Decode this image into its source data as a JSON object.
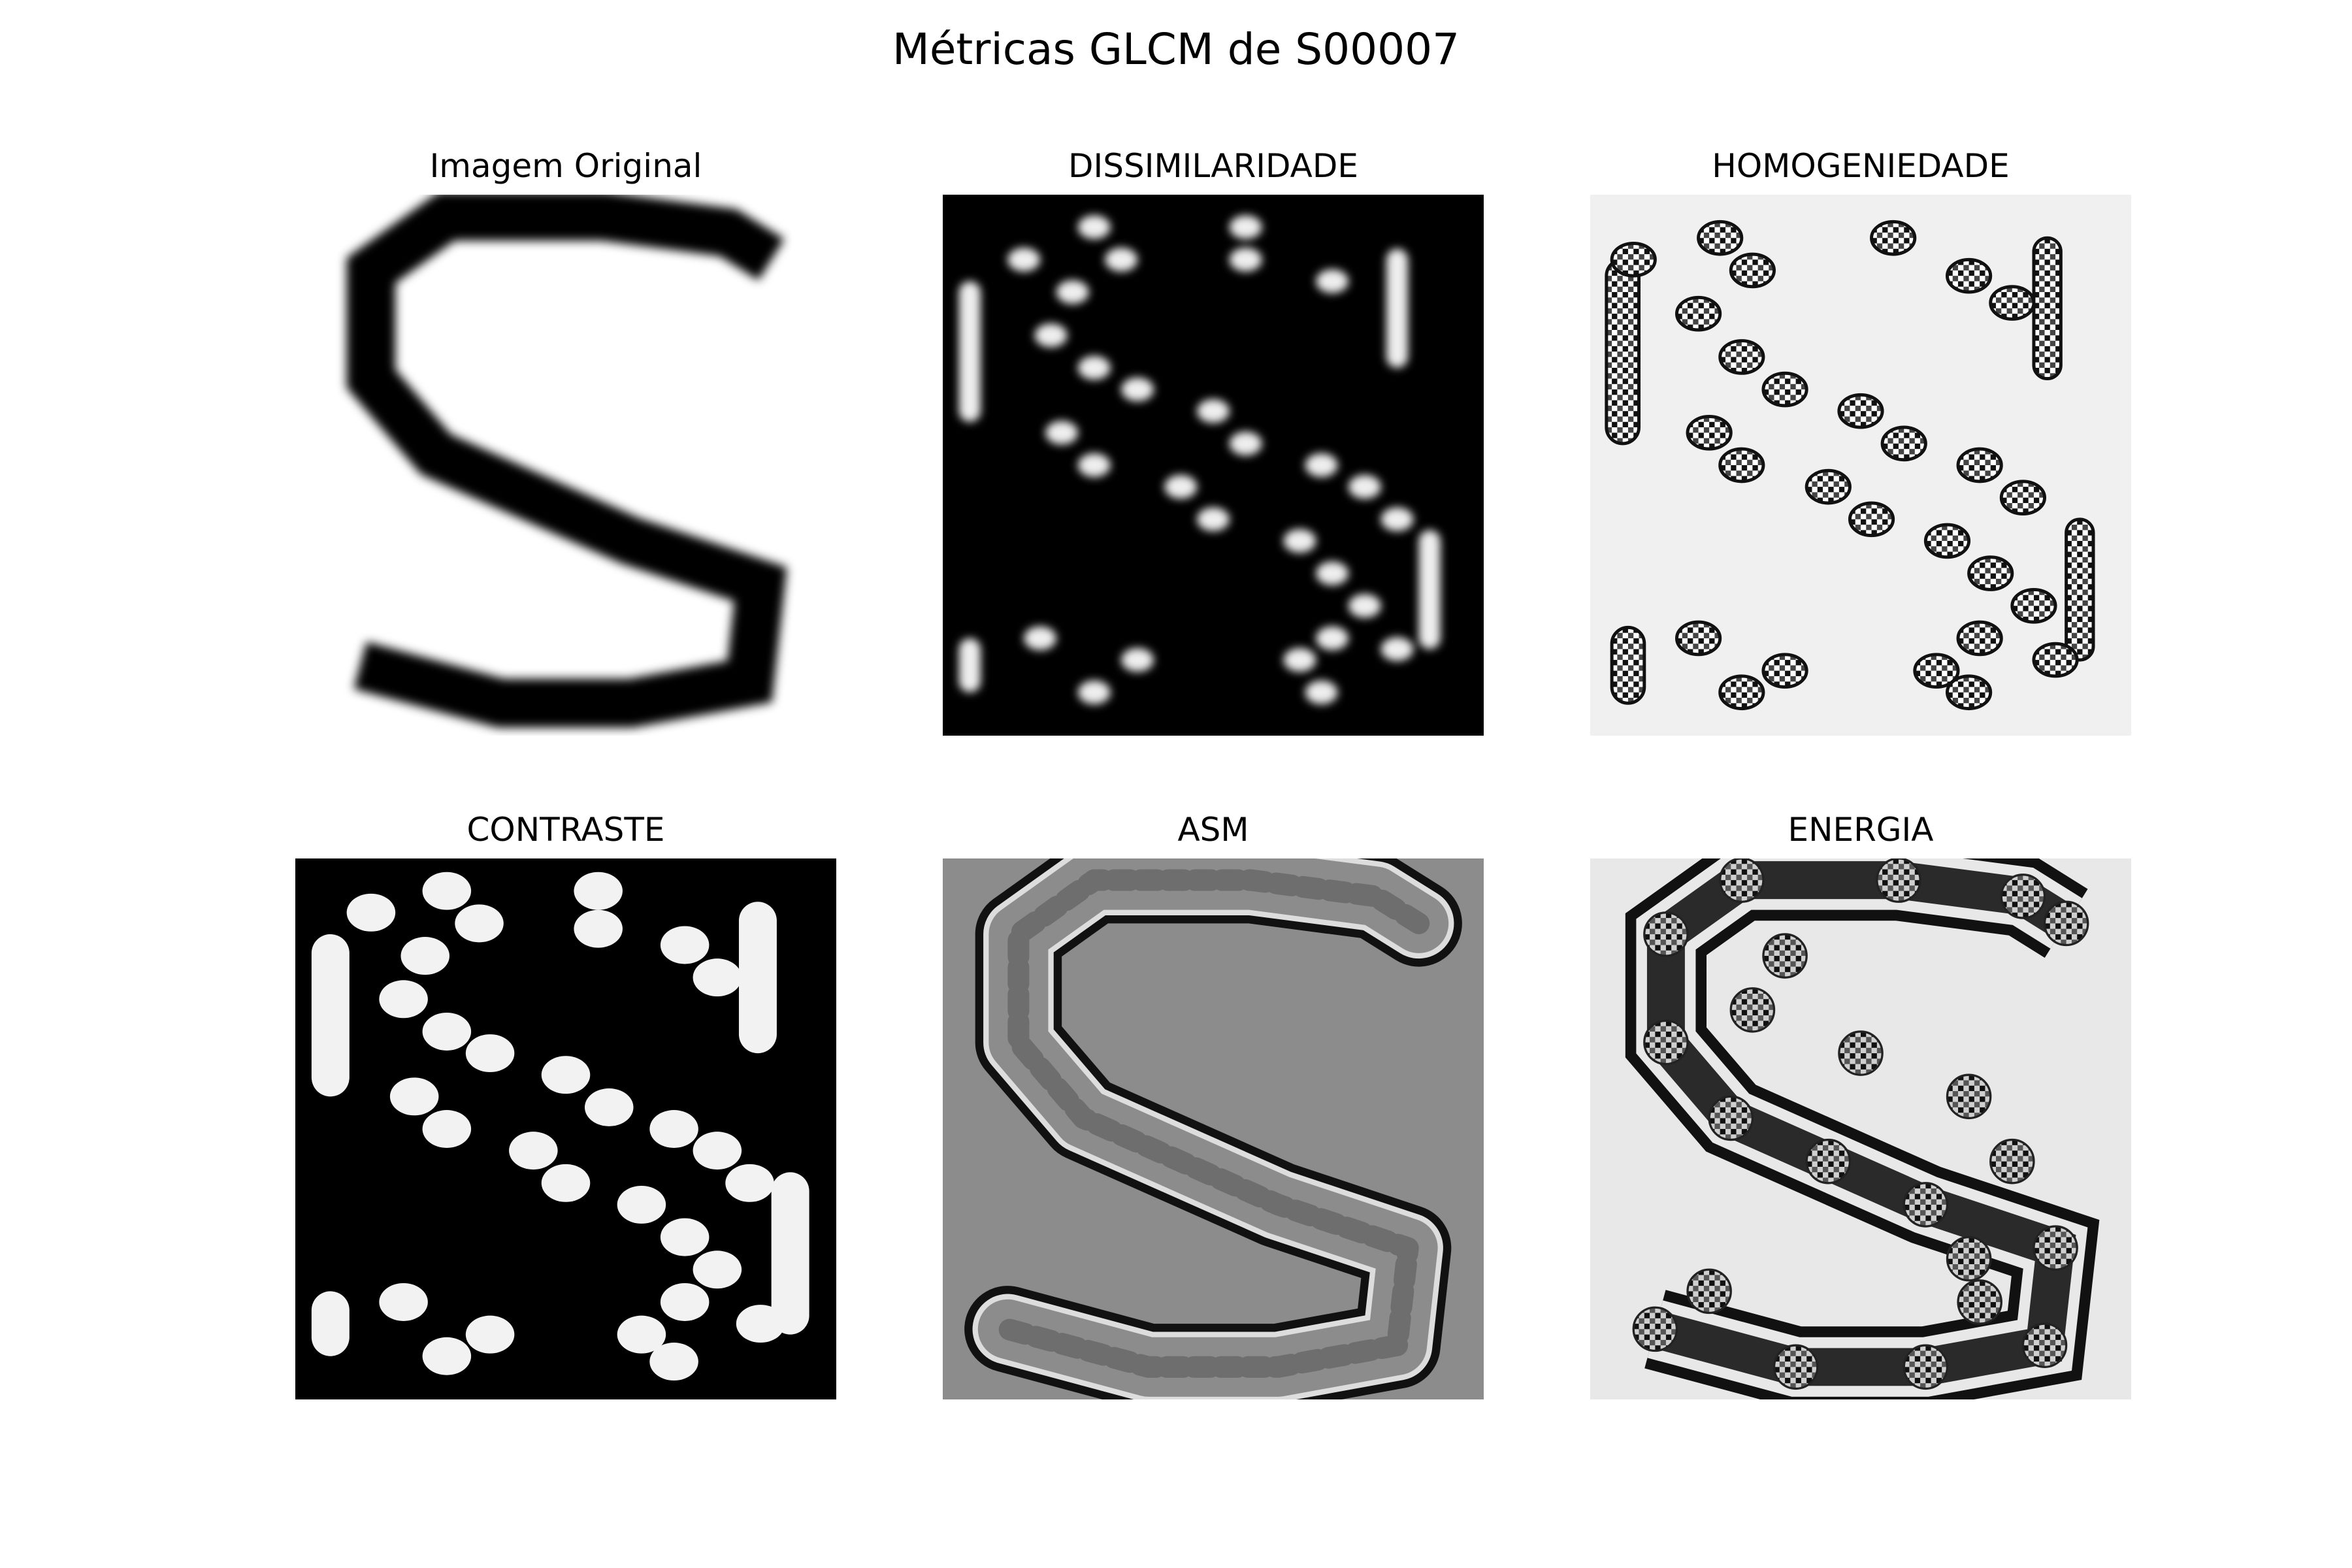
{
  "figure": {
    "title": "Métricas GLCM de S00007"
  },
  "panels": [
    {
      "title": "Imagem Original",
      "background": "#ffffff",
      "stroke": "#000000"
    },
    {
      "title": "DISSIMILARIDADE",
      "background": "#000000",
      "stroke": "#f2f2f2"
    },
    {
      "title": "HOMOGENIEDADE",
      "background": "#f0f0f0",
      "stroke": "#1a1a1a"
    },
    {
      "title": "CONTRASTE",
      "background": "#000000",
      "stroke": "#f2f2f2"
    },
    {
      "title": "ASM",
      "background": "#8c8c8c",
      "stroke": "#3a3a3a"
    },
    {
      "title": "ENERGIA",
      "background": "#e8e8e8",
      "stroke": "#1a1a1a"
    }
  ]
}
